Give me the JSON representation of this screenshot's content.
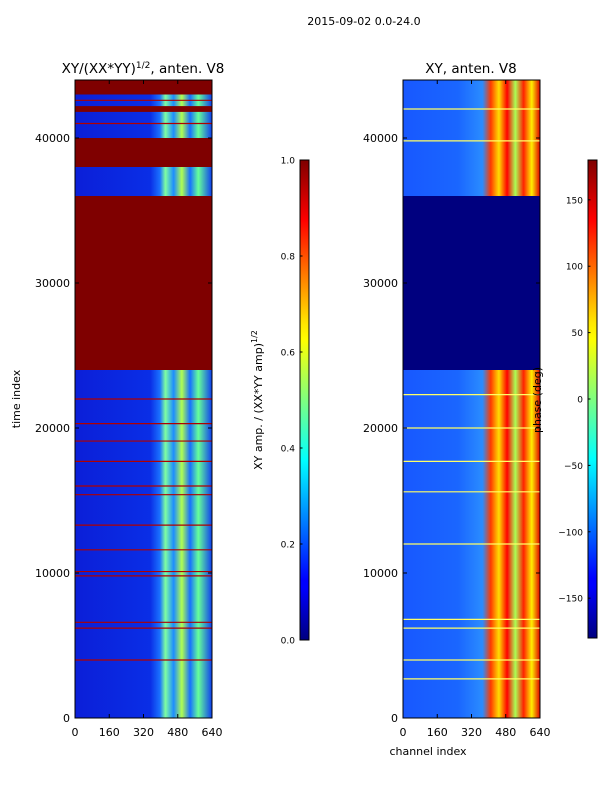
{
  "figure": {
    "suptitle": "2015-09-02 0.0-24.0"
  },
  "chart_data": [
    {
      "type": "heatmap",
      "title": "XY/(XX*YY)",
      "title_exponent": "1/2",
      "title_suffix": ", anten. V8",
      "xlabel": "",
      "ylabel": "time index",
      "xlim": [
        0,
        640
      ],
      "ylim": [
        0,
        44000
      ],
      "x_ticks": [
        0,
        160,
        320,
        480,
        640
      ],
      "y_ticks": [
        0,
        10000,
        20000,
        30000,
        40000
      ],
      "colormap": "jet",
      "colorbar": {
        "label": "XY amp. / (XX*YY amp)",
        "label_exponent": "1/2",
        "range": [
          0.0,
          1.0
        ],
        "ticks": [
          0.0,
          0.2,
          0.4,
          0.6,
          0.8,
          1.0
        ],
        "tick_labels": [
          "0.0",
          "0.2",
          "0.4",
          "0.6",
          "0.8",
          "1.0"
        ]
      },
      "saturated_bands": [
        [
          24000,
          36000
        ],
        [
          38000,
          40000
        ],
        [
          41800,
          42200
        ],
        [
          43000,
          44000
        ]
      ],
      "horizontal_lines": [
        4000,
        6200,
        6600,
        9800,
        10100,
        11600,
        13300,
        15400,
        16000,
        17700,
        19100,
        20300,
        22000,
        41000,
        42600
      ],
      "bright_region_channels": [
        420,
        640
      ]
    },
    {
      "type": "heatmap",
      "title": "XY, anten. V8",
      "xlabel": "channel index",
      "ylabel": "",
      "xlim": [
        0,
        640
      ],
      "ylim": [
        0,
        44000
      ],
      "x_ticks": [
        0,
        160,
        320,
        480,
        640
      ],
      "y_ticks": [
        0,
        10000,
        20000,
        30000,
        40000
      ],
      "colormap": "jet",
      "colorbar": {
        "label": "phase (deg)",
        "range": [
          -180,
          180
        ],
        "ticks": [
          -150,
          -100,
          -50,
          0,
          50,
          100,
          150
        ],
        "tick_labels": [
          "−150",
          "−100",
          "−50",
          "0",
          "50",
          "100",
          "150"
        ]
      },
      "flat_band": [
        24000,
        36000
      ],
      "horizontal_lines": [
        2700,
        4000,
        6200,
        6800,
        12000,
        15600,
        17700,
        20000,
        22300,
        39800,
        42000
      ],
      "bright_region_channels": [
        400,
        640
      ]
    }
  ]
}
